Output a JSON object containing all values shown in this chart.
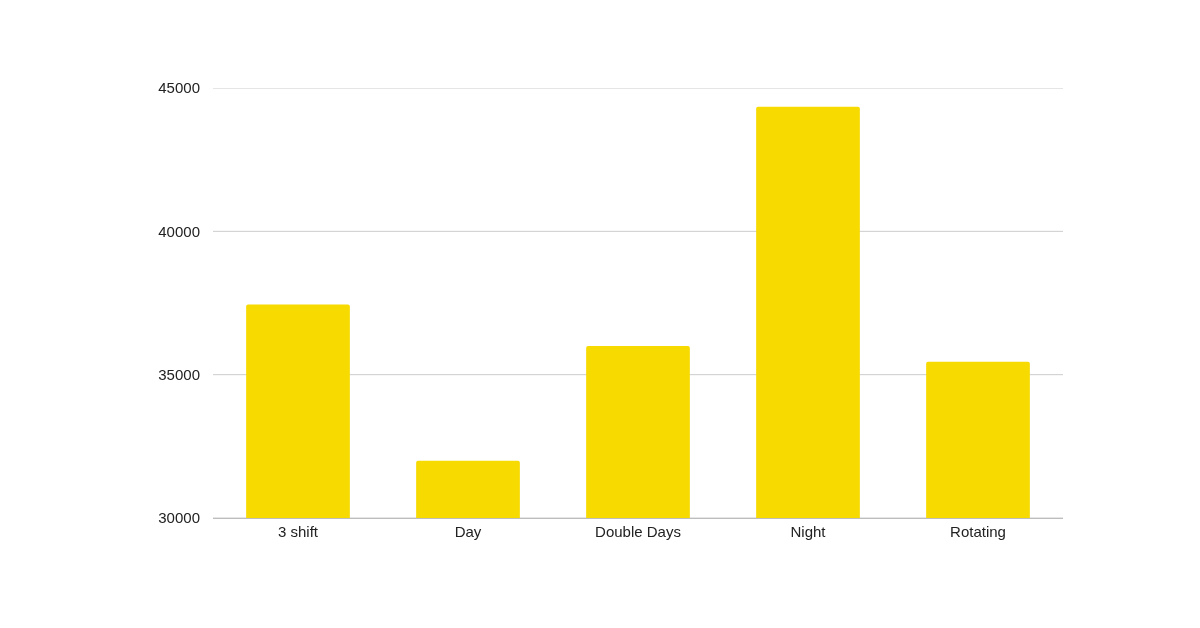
{
  "chart_data": {
    "type": "bar",
    "categories": [
      "3 shift",
      "Day",
      "Double Days",
      "Night",
      "Rotating"
    ],
    "values": [
      37450,
      32000,
      36000,
      44350,
      35450
    ],
    "color": "#f7da00",
    "ylim": [
      30000,
      45000
    ],
    "yticks": [
      30000,
      35000,
      40000,
      45000
    ],
    "grid": "y"
  }
}
